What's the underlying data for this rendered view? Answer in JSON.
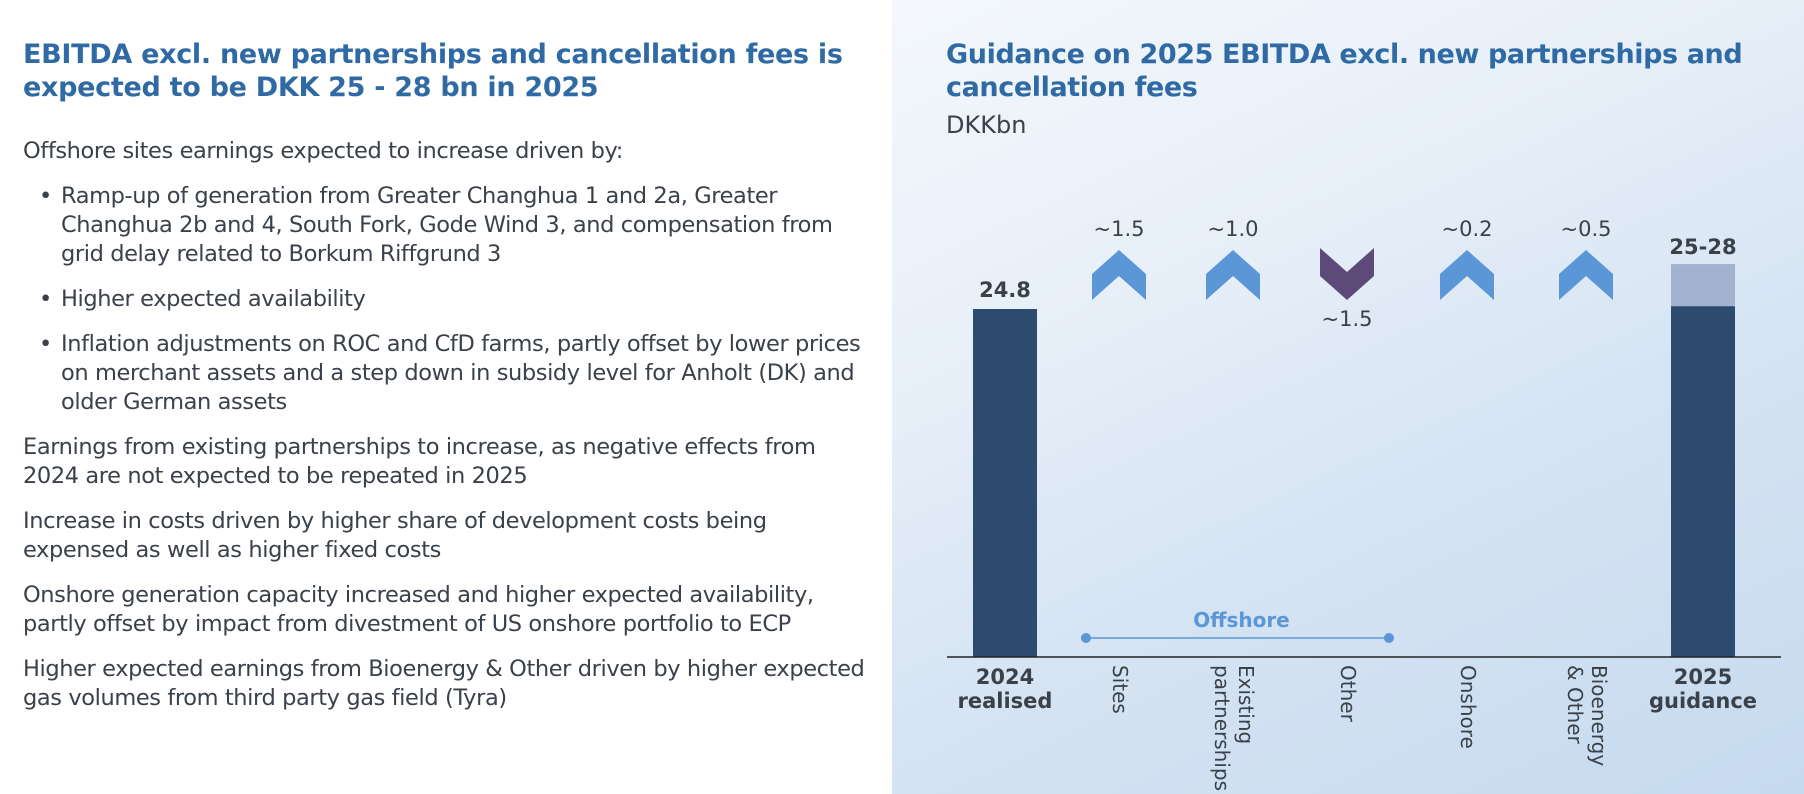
{
  "left": {
    "heading": "EBITDA excl. new partnerships and cancellation fees is expected to be DKK 25 - 28 bn in 2025",
    "intro": "Offshore sites earnings expected to increase driven by:",
    "bullet_char": "•",
    "bullets": [
      "Ramp-up of generation from Greater Changhua 1 and 2a, Greater Changhua 2b and 4, South Fork, Gode Wind 3, and compensation from grid delay related to Borkum Riffgrund 3",
      "Higher expected availability",
      "Inflation adjustments on ROC and CfD farms, partly offset by lower prices on merchant assets and a step down in subsidy level for Anholt (DK) and older German assets"
    ],
    "paragraphs": [
      "Earnings from existing partnerships to increase, as negative effects from 2024 are not expected to be repeated in 2025",
      "Increase in costs driven by higher share of development costs being expensed as well as higher fixed costs",
      "Onshore generation capacity increased and higher expected availability, partly offset by impact from divestment of US onshore portfolio to ECP",
      "Higher expected earnings from Bioenergy & Other driven by higher expected gas volumes from third party gas field (Tyra)"
    ]
  },
  "chart_data": {
    "type": "bar",
    "title": "Guidance on 2025 EBITDA excl. new partnerships and cancellation fees",
    "unit": "DKKbn",
    "ylim": [
      0,
      32
    ],
    "start": {
      "category_line1": "2024",
      "category_line2": "realised",
      "value": 24.8,
      "label": "24.8"
    },
    "drivers": [
      {
        "category_lines": [
          "Sites"
        ],
        "label": "~1.5",
        "value": 1.5,
        "direction": "up"
      },
      {
        "category_lines": [
          "Existing",
          "partnerships"
        ],
        "label": "~1.0",
        "value": 1.0,
        "direction": "up"
      },
      {
        "category_lines": [
          "Other"
        ],
        "label": "~1.5",
        "value": -1.5,
        "direction": "down"
      },
      {
        "category_lines": [
          "Onshore"
        ],
        "label": "~0.2",
        "value": 0.2,
        "direction": "up"
      },
      {
        "category_lines": [
          "Bioenergy",
          "& Other"
        ],
        "label": "~0.5",
        "value": 0.5,
        "direction": "up"
      }
    ],
    "end": {
      "category_line1": "2025",
      "category_line2": "guidance",
      "low": 25,
      "high": 28,
      "label": "25-28"
    },
    "bracket": {
      "label": "Offshore",
      "from_driver": 0,
      "to_driver": 2
    }
  },
  "colors": {
    "bar": "#2d4a6f",
    "range": "#a2b2cf",
    "up": "#5b97d6",
    "down": "#5d4a78",
    "bracket": "#5b97d6",
    "axis": "#222222"
  }
}
